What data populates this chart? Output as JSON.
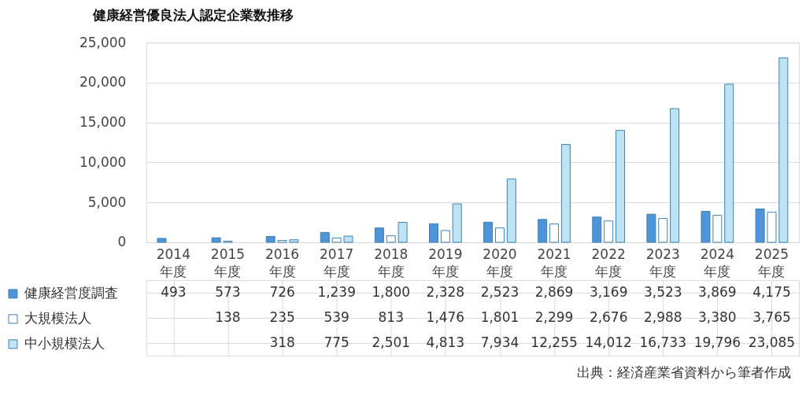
{
  "chart_data": {
    "type": "bar",
    "title": "健康経営優良法人認定企業数推移",
    "categories": [
      "2014年度",
      "2015年度",
      "2016年度",
      "2017年度",
      "2018年度",
      "2019年度",
      "2020年度",
      "2021年度",
      "2022年度",
      "2023年度",
      "2024年度",
      "2025年度"
    ],
    "series": [
      {
        "name": "健康経営度調査",
        "color": "#4e94d8",
        "values": [
          493,
          573,
          726,
          1239,
          1800,
          2328,
          2523,
          2869,
          3169,
          3523,
          3869,
          4175
        ],
        "value_labels": [
          "493",
          "573",
          "726",
          "1,239",
          "1,800",
          "2,328",
          "2,523",
          "2,869",
          "3,169",
          "3,523",
          "3,869",
          "4,175"
        ]
      },
      {
        "name": "大規模法人",
        "color": "#ffffff",
        "values": [
          null,
          138,
          235,
          539,
          813,
          1476,
          1801,
          2299,
          2676,
          2988,
          3380,
          3765
        ],
        "value_labels": [
          null,
          "138",
          "235",
          "539",
          "813",
          "1,476",
          "1,801",
          "2,299",
          "2,676",
          "2,988",
          "3,380",
          "3,765"
        ]
      },
      {
        "name": "中小規模法人",
        "color": "#bde3f4",
        "values": [
          null,
          null,
          318,
          775,
          2501,
          4813,
          7934,
          12255,
          14012,
          16733,
          19796,
          23085
        ],
        "value_labels": [
          null,
          null,
          "318",
          "775",
          "2,501",
          "4,813",
          "7,934",
          "12,255",
          "14,012",
          "16,733",
          "19,796",
          "23,085"
        ]
      }
    ],
    "ylim": [
      0,
      25000
    ],
    "yticks": [
      0,
      {
        "value": 5000,
        "label": "5,000"
      },
      {
        "value": 10000,
        "label": "10,000"
      },
      {
        "value": 15000,
        "label": "15,000"
      },
      {
        "value": 20000,
        "label": "20,000"
      },
      {
        "value": 25000,
        "label": "25,000"
      }
    ],
    "grid": "y",
    "legend": "left",
    "annotations": [
      "出典：経済産業省資料から筆者作成"
    ]
  }
}
